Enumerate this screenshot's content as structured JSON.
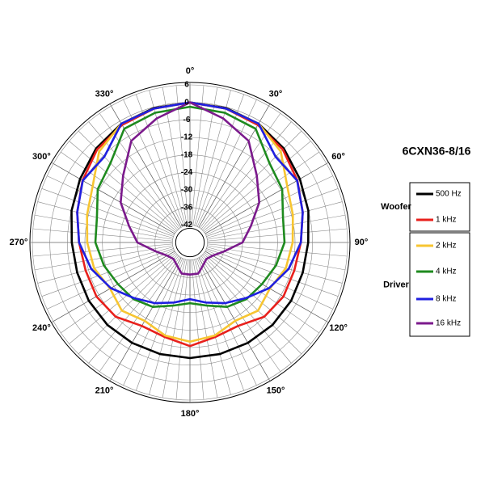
{
  "chart_data": {
    "type": "polar",
    "title": "6CXN36-8/16",
    "theta": [
      0,
      15,
      30,
      45,
      60,
      75,
      90,
      105,
      120,
      135,
      150,
      165,
      180,
      195,
      210,
      225,
      240,
      255,
      270,
      285,
      300,
      315,
      330,
      345
    ],
    "rlim": [
      -48,
      6
    ],
    "rticks": [
      6,
      0,
      -6,
      -12,
      -18,
      -24,
      -30,
      -36,
      -42
    ],
    "thetaticks": [
      {
        "value": 0,
        "label": "0°"
      },
      {
        "value": 30,
        "label": "30°"
      },
      {
        "value": 60,
        "label": "60°"
      },
      {
        "value": 90,
        "label": "90°"
      },
      {
        "value": 120,
        "label": "120°"
      },
      {
        "value": 150,
        "label": "150°"
      },
      {
        "value": 180,
        "label": "180°"
      },
      {
        "value": 210,
        "label": "210°"
      },
      {
        "value": 240,
        "label": "240°"
      },
      {
        "value": 270,
        "label": "270°"
      },
      {
        "value": 300,
        "label": "300°"
      },
      {
        "value": 330,
        "label": "330°"
      }
    ],
    "grid": true,
    "series": [
      {
        "name": "500 Hz",
        "group": "Woofer",
        "color": "#000000",
        "values": [
          0,
          -0.3,
          -1,
          -2.5,
          -4.5,
          -6,
          -7.5,
          -8,
          -8,
          -8,
          -8.3,
          -8.4,
          -8.4,
          -8.4,
          -8.3,
          -8,
          -8,
          -8,
          -7.5,
          -6,
          -4.5,
          -2.5,
          -1,
          -0.3
        ]
      },
      {
        "name": "1 kHz",
        "group": "Woofer",
        "color": "#e8201c",
        "values": [
          0,
          -0.5,
          -1.5,
          -3,
          -5.5,
          -8,
          -10,
          -11,
          -11,
          -12,
          -15,
          -14.5,
          -12.5,
          -14.5,
          -15,
          -12,
          -11,
          -11,
          -10,
          -8,
          -5.5,
          -3,
          -1.5,
          -0.5
        ]
      },
      {
        "name": "2 kHz",
        "group": "Driver",
        "color": "#f7c531",
        "values": [
          0,
          -0.5,
          -1,
          -4,
          -9.5,
          -11.5,
          -12.8,
          -14,
          -16.4,
          -15,
          -17,
          -15,
          -14,
          -15,
          -17,
          -15,
          -16.4,
          -14,
          -12.8,
          -11.5,
          -9.5,
          -4,
          -1,
          -0.5
        ]
      },
      {
        "name": "4 kHz",
        "group": "Driver",
        "color": "#1e8a1e",
        "values": [
          -1.5,
          -2,
          -3,
          -9.5,
          -11.5,
          -15,
          -15.6,
          -17.5,
          -19.5,
          -20.6,
          -22.5,
          -25.6,
          -27.2,
          -25.6,
          -22.5,
          -20.6,
          -19.5,
          -17.5,
          -15.6,
          -15,
          -11.5,
          -9.5,
          -3,
          -2
        ]
      },
      {
        "name": "8 kHz",
        "group": "Driver",
        "color": "#1f1fe0",
        "values": [
          0,
          -0.5,
          -1,
          -6.5,
          -5.6,
          -8,
          -10,
          -13,
          -16.7,
          -21,
          -24,
          -26.7,
          -28.6,
          -26.7,
          -24,
          -21,
          -16.7,
          -13,
          -10,
          -8,
          -5.6,
          -6.5,
          -1,
          -0.5
        ]
      },
      {
        "name": "16 kHz",
        "group": "Driver",
        "color": "#7b1a8c",
        "values": [
          0,
          -4,
          -7.8,
          -15.6,
          -20.6,
          -26.4,
          -30,
          -36,
          -39,
          -40,
          -39,
          -37,
          -37,
          -37,
          -39,
          -40,
          -39,
          -36,
          -30,
          -26.4,
          -20.6,
          -15.6,
          -7.8,
          -4
        ]
      }
    ]
  }
}
